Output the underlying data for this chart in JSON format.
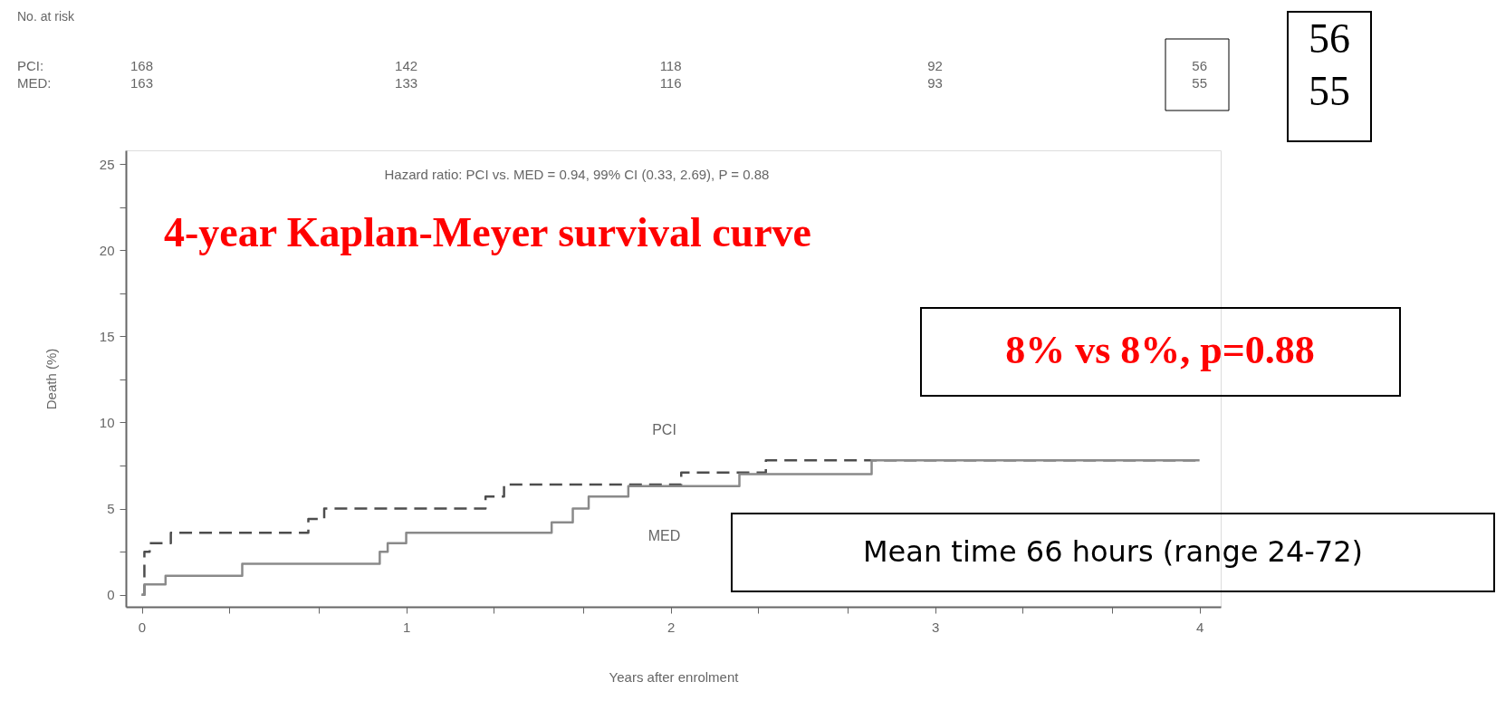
{
  "chart_data": {
    "type": "step",
    "title": "4-year Kaplan-Meyer survival curve",
    "xlabel": "Years after enrolment",
    "ylabel": "Death (%)",
    "xlim": [
      -0.06,
      4.08
    ],
    "ylim": [
      -0.7,
      25.8
    ],
    "xticks": [
      0,
      {
        "value": 0.33,
        "label": null
      },
      {
        "value": 0.67,
        "label": null
      },
      1,
      {
        "value": 1.33,
        "label": null
      },
      {
        "value": 1.67,
        "label": null
      },
      2,
      {
        "value": 2.33,
        "label": null
      },
      {
        "value": 2.67,
        "label": null
      },
      3,
      {
        "value": 3.33,
        "label": null
      },
      {
        "value": 3.67,
        "label": null
      },
      4
    ],
    "yticks": [
      0,
      {
        "value": 2.5,
        "label": null
      },
      5,
      {
        "value": 7.5,
        "label": null
      },
      10,
      {
        "value": 12.5,
        "label": null
      },
      15,
      {
        "value": 17.5,
        "label": null
      },
      20,
      {
        "value": 22.5,
        "label": null
      },
      25
    ],
    "grid": false,
    "legend": false,
    "series": [
      {
        "name": "PCI",
        "color": "#4d4d4d",
        "line_style": "dashed",
        "x": [
          0,
          0.01,
          0.03,
          0.11,
          0.63,
          0.69,
          1.3,
          1.37,
          2.04,
          2.36,
          4.0
        ],
        "values": [
          0,
          2.5,
          3.0,
          3.6,
          4.4,
          5.0,
          5.7,
          6.4,
          7.1,
          7.8,
          7.8
        ]
      },
      {
        "name": "MED",
        "color": "#8a8a8a",
        "line_style": "solid",
        "x": [
          0,
          0.01,
          0.09,
          0.38,
          0.9,
          0.93,
          1.0,
          1.55,
          1.63,
          1.69,
          1.84,
          2.26,
          2.76,
          4.0
        ],
        "values": [
          0,
          0.6,
          1.1,
          1.8,
          2.5,
          3.0,
          3.6,
          4.2,
          5.0,
          5.7,
          6.3,
          7.0,
          7.8,
          7.8
        ]
      }
    ],
    "annotations": [
      "No. at risk",
      "PCI:",
      "MED:",
      "168",
      "142",
      "118",
      "92",
      "56",
      "163",
      "133",
      "116",
      "93",
      "55",
      "Hazard ratio: PCI vs. MED = 0.94, 99% CI (0.33, 2.69), P = 0.88",
      "8% vs 8%, p=0.88",
      "Mean time 66 hours (range 24-72)",
      "56",
      "55"
    ]
  }
}
